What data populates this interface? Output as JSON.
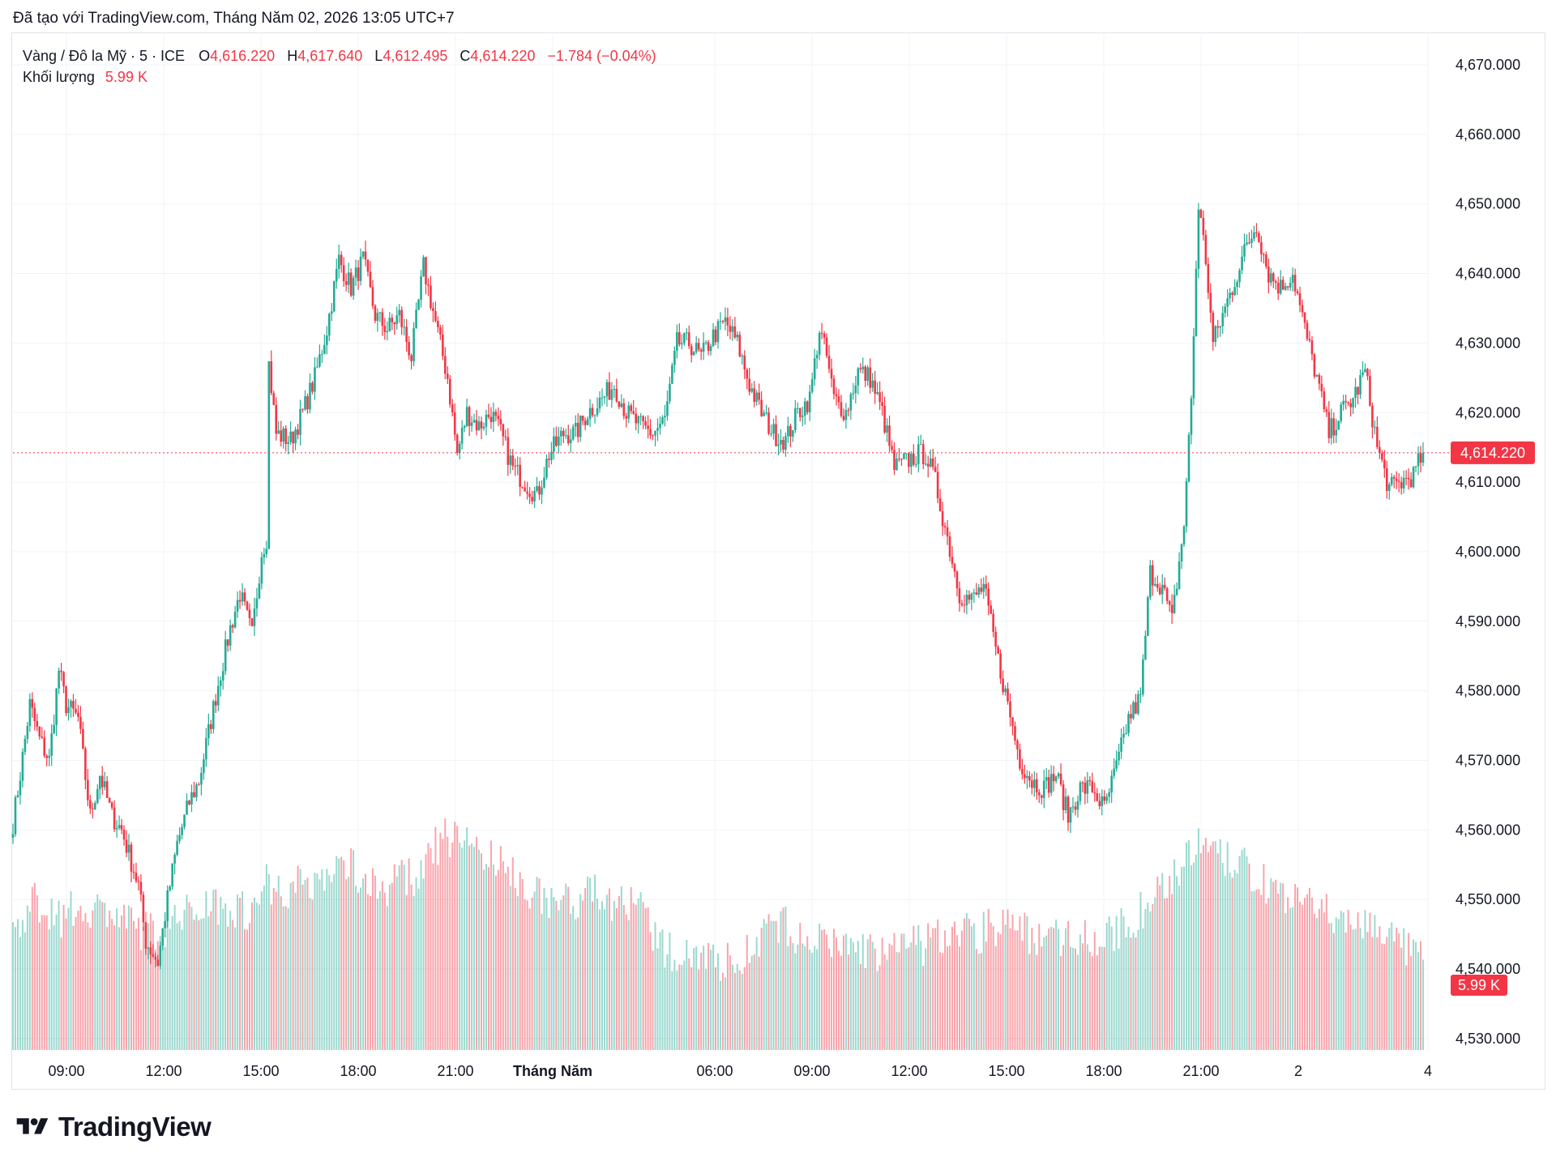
{
  "caption": "Đã tạo với TradingView.com, Tháng Năm 02, 2026 13:05 UTC+7",
  "legend": {
    "symbol": "Vàng / Đô la Mỹ · 5 · ICE",
    "open_label": "O",
    "open": "4,616.220",
    "high_label": "H",
    "high": "4,617.640",
    "low_label": "L",
    "low": "4,612.495",
    "close_label": "C",
    "close": "4,614.220",
    "change": "−1.784 (−0.04%)",
    "volume_label": "Khối lượng",
    "volume": "5.99 K"
  },
  "price_badge": "4,614.220",
  "volume_badge": "5.99 K",
  "brand": "TradingView",
  "colors": {
    "up": "#22ab94",
    "down": "#f23645",
    "grid": "#f0f3fa",
    "text": "#131722"
  },
  "chart_data": {
    "type": "candlestick",
    "symbol": "Vàng / Đô la Mỹ",
    "interval": "5",
    "exchange": "ICE",
    "y_ticks": [
      "4,670.000",
      "4,660.000",
      "4,650.000",
      "4,640.000",
      "4,630.000",
      "4,620.000",
      "4,610.000",
      "4,600.000",
      "4,590.000",
      "4,580.000",
      "4,570.000",
      "4,560.000",
      "4,550.000",
      "4,540.000",
      "4,530.000"
    ],
    "y_tick_values": [
      4670,
      4660,
      4650,
      4640,
      4630,
      4620,
      4610,
      4600,
      4590,
      4580,
      4570,
      4560,
      4550,
      4540,
      4530
    ],
    "ylim": [
      4525,
      4677
    ],
    "x_ticks": [
      {
        "label": "09:00",
        "bold": false
      },
      {
        "label": "12:00",
        "bold": false
      },
      {
        "label": "15:00",
        "bold": false
      },
      {
        "label": "18:00",
        "bold": false
      },
      {
        "label": "21:00",
        "bold": false
      },
      {
        "label": "Tháng Năm",
        "bold": true
      },
      {
        "label": "06:00",
        "bold": false
      },
      {
        "label": "09:00",
        "bold": false
      },
      {
        "label": "12:00",
        "bold": false
      },
      {
        "label": "15:00",
        "bold": false
      },
      {
        "label": "18:00",
        "bold": false
      },
      {
        "label": "21:00",
        "bold": false
      },
      {
        "label": "2",
        "bold": false
      },
      {
        "label": "4",
        "bold": false
      }
    ],
    "last_price": 4614.22,
    "price_path": [
      [
        0,
        4561
      ],
      [
        3,
        4568
      ],
      [
        7,
        4578
      ],
      [
        11,
        4573
      ],
      [
        15,
        4570
      ],
      [
        19,
        4583
      ],
      [
        22,
        4578
      ],
      [
        27,
        4576
      ],
      [
        32,
        4562
      ],
      [
        36,
        4568
      ],
      [
        41,
        4562
      ],
      [
        45,
        4560
      ],
      [
        52,
        4552
      ],
      [
        55,
        4544
      ],
      [
        60,
        4541
      ],
      [
        64,
        4550
      ],
      [
        68,
        4558
      ],
      [
        73,
        4564
      ],
      [
        77,
        4567
      ],
      [
        81,
        4574
      ],
      [
        85,
        4581
      ],
      [
        90,
        4589
      ],
      [
        94,
        4594
      ],
      [
        99,
        4588
      ],
      [
        103,
        4600
      ],
      [
        105,
        4602
      ],
      [
        106,
        4627
      ],
      [
        109,
        4617
      ],
      [
        115,
        4616
      ],
      [
        120,
        4620
      ],
      [
        125,
        4625
      ],
      [
        130,
        4632
      ],
      [
        135,
        4642
      ],
      [
        140,
        4638
      ],
      [
        145,
        4642
      ],
      [
        150,
        4634
      ],
      [
        155,
        4632
      ],
      [
        160,
        4634
      ],
      [
        165,
        4628
      ],
      [
        170,
        4641
      ],
      [
        175,
        4633
      ],
      [
        180,
        4625
      ],
      [
        184,
        4614
      ],
      [
        188,
        4620
      ],
      [
        193,
        4618
      ],
      [
        198,
        4620
      ],
      [
        202,
        4617
      ],
      [
        207,
        4612
      ],
      [
        212,
        4610
      ],
      [
        217,
        4608
      ],
      [
        222,
        4614
      ],
      [
        228,
        4617
      ],
      [
        233,
        4617
      ],
      [
        238,
        4620
      ],
      [
        244,
        4622
      ],
      [
        249,
        4624
      ],
      [
        254,
        4620
      ],
      [
        260,
        4618
      ],
      [
        265,
        4617
      ],
      [
        270,
        4619
      ],
      [
        275,
        4630
      ],
      [
        280,
        4630
      ],
      [
        285,
        4628
      ],
      [
        290,
        4631
      ],
      [
        295,
        4633
      ],
      [
        300,
        4630
      ],
      [
        305,
        4624
      ],
      [
        310,
        4620
      ],
      [
        315,
        4617
      ],
      [
        320,
        4616
      ],
      [
        325,
        4620
      ],
      [
        330,
        4622
      ],
      [
        334,
        4632
      ],
      [
        337,
        4628
      ],
      [
        340,
        4622
      ],
      [
        345,
        4620
      ],
      [
        350,
        4626
      ],
      [
        355,
        4625
      ],
      [
        360,
        4620
      ],
      [
        365,
        4612
      ],
      [
        370,
        4613
      ],
      [
        375,
        4614
      ],
      [
        378,
        4614
      ],
      [
        382,
        4610
      ],
      [
        387,
        4602
      ],
      [
        392,
        4594
      ],
      [
        397,
        4593
      ],
      [
        402,
        4595
      ],
      [
        407,
        4586
      ],
      [
        412,
        4578
      ],
      [
        417,
        4570
      ],
      [
        422,
        4567
      ],
      [
        427,
        4566
      ],
      [
        432,
        4568
      ],
      [
        437,
        4562
      ],
      [
        442,
        4566
      ],
      [
        447,
        4566
      ],
      [
        452,
        4563
      ],
      [
        457,
        4569
      ],
      [
        462,
        4576
      ],
      [
        467,
        4579
      ],
      [
        471,
        4597
      ],
      [
        476,
        4595
      ],
      [
        480,
        4590
      ],
      [
        485,
        4604
      ],
      [
        488,
        4622
      ],
      [
        491,
        4650
      ],
      [
        494,
        4642
      ],
      [
        497,
        4630
      ],
      [
        502,
        4635
      ],
      [
        507,
        4640
      ],
      [
        511,
        4644
      ],
      [
        515,
        4647
      ],
      [
        520,
        4640
      ],
      [
        525,
        4638
      ],
      [
        530,
        4640
      ],
      [
        535,
        4632
      ],
      [
        540,
        4625
      ],
      [
        545,
        4617
      ],
      [
        550,
        4620
      ],
      [
        555,
        4622
      ],
      [
        560,
        4626
      ],
      [
        565,
        4615
      ],
      [
        570,
        4609
      ],
      [
        575,
        4610
      ],
      [
        580,
        4611
      ],
      [
        584,
        4614.22
      ]
    ],
    "volume_profile": [
      [
        0,
        4.6
      ],
      [
        10,
        5.6
      ],
      [
        20,
        5.0
      ],
      [
        30,
        5.4
      ],
      [
        40,
        5.2
      ],
      [
        50,
        4.6
      ],
      [
        60,
        4.4
      ],
      [
        70,
        5.0
      ],
      [
        80,
        5.6
      ],
      [
        90,
        5.4
      ],
      [
        100,
        5.2
      ],
      [
        105,
        6.4
      ],
      [
        110,
        6.0
      ],
      [
        120,
        6.2
      ],
      [
        130,
        6.6
      ],
      [
        140,
        7.0
      ],
      [
        150,
        6.0
      ],
      [
        160,
        6.4
      ],
      [
        170,
        6.6
      ],
      [
        175,
        7.6
      ],
      [
        180,
        8.0
      ],
      [
        190,
        7.8
      ],
      [
        200,
        7.0
      ],
      [
        210,
        6.4
      ],
      [
        220,
        5.6
      ],
      [
        230,
        5.6
      ],
      [
        240,
        5.8
      ],
      [
        250,
        5.6
      ],
      [
        260,
        5.2
      ],
      [
        270,
        3.6
      ],
      [
        280,
        3.8
      ],
      [
        290,
        3.4
      ],
      [
        300,
        3.2
      ],
      [
        310,
        4.4
      ],
      [
        320,
        4.6
      ],
      [
        330,
        4.0
      ],
      [
        340,
        4.0
      ],
      [
        350,
        3.8
      ],
      [
        360,
        3.6
      ],
      [
        370,
        3.8
      ],
      [
        380,
        4.0
      ],
      [
        390,
        4.6
      ],
      [
        400,
        4.4
      ],
      [
        410,
        4.8
      ],
      [
        420,
        4.4
      ],
      [
        430,
        4.2
      ],
      [
        440,
        4.4
      ],
      [
        450,
        4.0
      ],
      [
        460,
        4.6
      ],
      [
        470,
        5.4
      ],
      [
        480,
        6.6
      ],
      [
        490,
        7.6
      ],
      [
        500,
        7.2
      ],
      [
        510,
        6.8
      ],
      [
        520,
        6.2
      ],
      [
        530,
        5.6
      ],
      [
        540,
        5.2
      ],
      [
        550,
        5.0
      ],
      [
        560,
        4.8
      ],
      [
        570,
        4.4
      ],
      [
        580,
        3.4
      ],
      [
        584,
        3.4
      ]
    ],
    "volume_ymax": 9.6
  }
}
